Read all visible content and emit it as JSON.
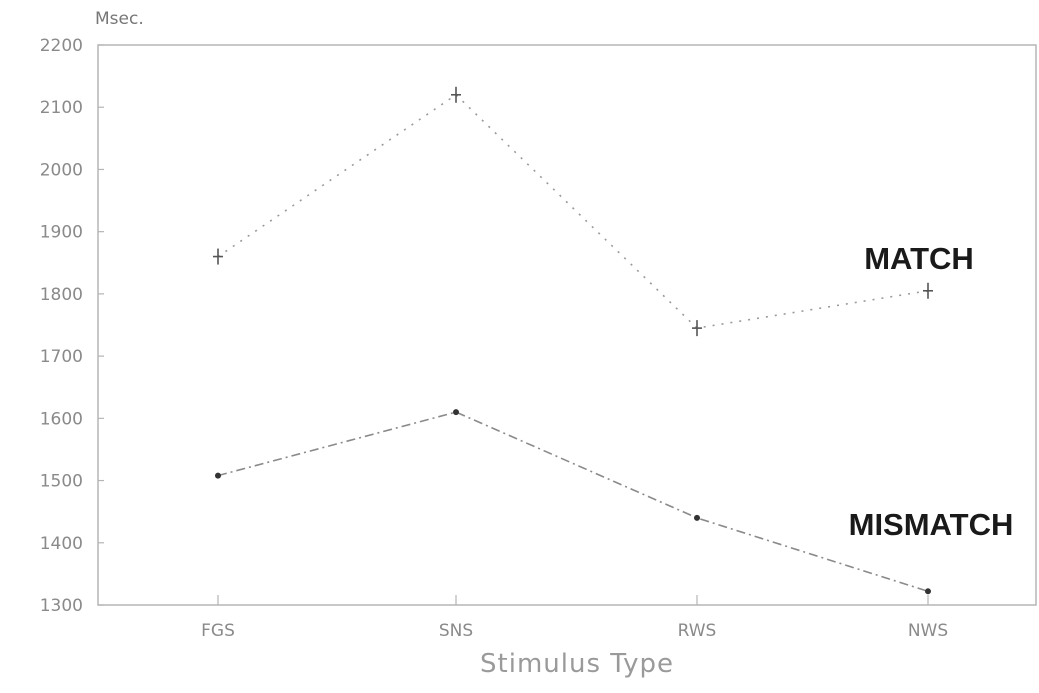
{
  "chart_data": {
    "type": "line",
    "unit_label": "Msec.",
    "xlabel": "Stimulus Type",
    "ylabel": "",
    "categories": [
      "FGS",
      "SNS",
      "RWS",
      "NWS"
    ],
    "yticks": [
      "2200",
      "2100",
      "2000",
      "1900",
      "1800",
      "1700",
      "1600",
      "1500",
      "1400",
      "1300"
    ],
    "ylim": [
      1300,
      2200
    ],
    "grid": false,
    "series": [
      {
        "name": "MATCH",
        "values": [
          1860,
          2120,
          1745,
          1805
        ],
        "color": "#9a9a9a",
        "dash": "dotted"
      },
      {
        "name": "MISMATCH",
        "values": [
          1508,
          1610,
          1440,
          1322
        ],
        "color": "#8a8a8a",
        "dash": "dash-dot"
      }
    ]
  }
}
